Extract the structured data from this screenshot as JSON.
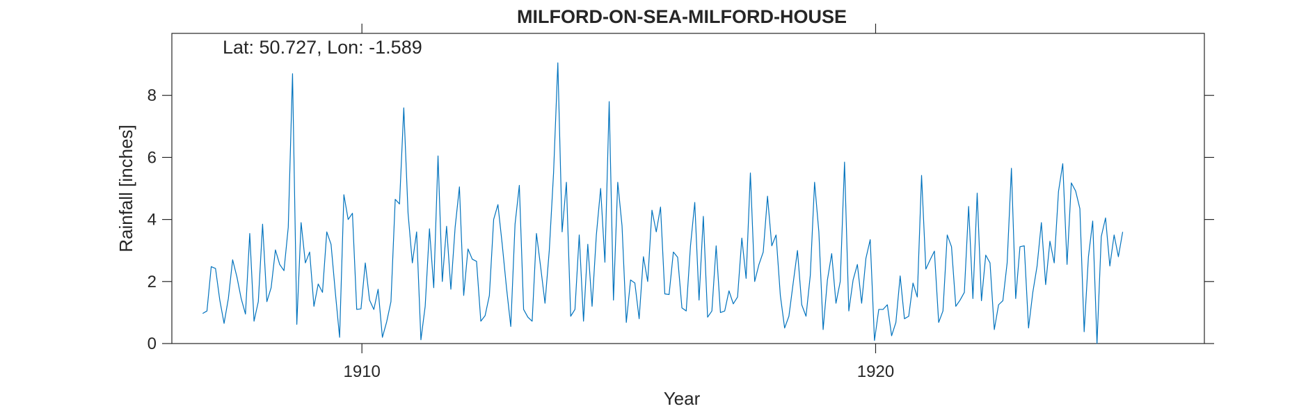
{
  "chart_data": {
    "type": "line",
    "title": "MILFORD-ON-SEA-MILFORD-HOUSE",
    "annotation": "Lat: 50.727, Lon: -1.589",
    "xlabel": "Year",
    "ylabel": "Rainfall [inches]",
    "xlim": [
      1906.3,
      1926.4
    ],
    "ylim": [
      0,
      10
    ],
    "x_ticks": [
      1910,
      1920
    ],
    "x_tick_labels": [
      "1910",
      "1920"
    ],
    "y_ticks": [
      0,
      2,
      4,
      6,
      8
    ],
    "y_tick_labels": [
      "0",
      "2",
      "4",
      "6",
      "8"
    ],
    "grid": false,
    "line_color": "#0072BD",
    "series": [
      {
        "start_year": 1906.9,
        "step_years": 0.0833,
        "values": [
          0.97,
          1.05,
          2.48,
          2.42,
          1.4,
          0.65,
          1.45,
          2.7,
          2.15,
          1.45,
          0.95,
          3.55,
          0.72,
          1.35,
          3.85,
          1.35,
          1.8,
          3.02,
          2.55,
          2.35,
          3.75,
          8.7,
          0.62,
          3.9,
          2.6,
          2.95,
          1.2,
          1.92,
          1.65,
          3.6,
          3.2,
          1.65,
          0.2,
          4.8,
          4.0,
          4.2,
          1.1,
          1.12,
          2.6,
          1.4,
          1.1,
          1.75,
          0.2,
          0.7,
          1.35,
          4.65,
          4.5,
          7.6,
          4.2,
          2.6,
          3.6,
          0.12,
          1.2,
          3.7,
          1.8,
          6.05,
          2.0,
          3.78,
          1.75,
          3.75,
          5.05,
          1.55,
          3.05,
          2.72,
          2.65,
          0.72,
          0.9,
          1.55,
          4.0,
          4.48,
          3.2,
          1.8,
          0.55,
          3.85,
          5.1,
          1.1,
          0.85,
          0.72,
          3.55,
          2.45,
          1.3,
          3.0,
          5.5,
          9.05,
          3.6,
          5.2,
          0.88,
          1.1,
          3.5,
          0.72,
          3.2,
          1.2,
          3.5,
          5.0,
          2.62,
          7.8,
          1.4,
          5.2,
          3.8,
          0.68,
          2.05,
          1.95,
          0.8,
          2.8,
          2.0,
          4.3,
          3.6,
          4.4,
          1.6,
          1.58,
          2.95,
          2.78,
          1.15,
          1.05,
          3.15,
          4.55,
          1.4,
          4.1,
          0.85,
          1.05,
          3.15,
          1.0,
          1.05,
          1.7,
          1.28,
          1.5,
          3.4,
          2.1,
          5.5,
          2.0,
          2.55,
          2.95,
          4.75,
          3.15,
          3.5,
          1.55,
          0.5,
          0.88,
          1.95,
          3.0,
          1.25,
          0.88,
          2.2,
          5.2,
          3.6,
          0.45,
          2.05,
          2.9,
          1.3,
          2.0,
          5.85,
          1.05,
          2.05,
          2.55,
          1.3,
          2.75,
          3.35,
          0.1,
          1.1,
          1.1,
          1.25,
          0.25,
          0.68,
          2.18,
          0.8,
          0.88,
          1.95,
          1.5,
          5.42,
          2.4,
          2.7,
          2.98,
          0.68,
          1.05,
          3.5,
          3.12,
          1.2,
          1.4,
          1.65,
          4.42,
          1.45,
          4.85,
          1.38,
          2.85,
          2.6,
          0.45,
          1.25,
          1.38,
          2.6,
          5.65,
          1.45,
          3.12,
          3.15,
          0.5,
          1.65,
          2.5,
          3.9,
          1.9,
          3.3,
          2.6,
          4.9,
          5.8,
          2.55,
          5.18,
          4.92,
          4.35,
          0.38,
          2.8,
          3.95,
          0.0,
          3.45,
          4.05,
          2.5,
          3.5,
          2.8,
          3.6
        ]
      }
    ]
  }
}
